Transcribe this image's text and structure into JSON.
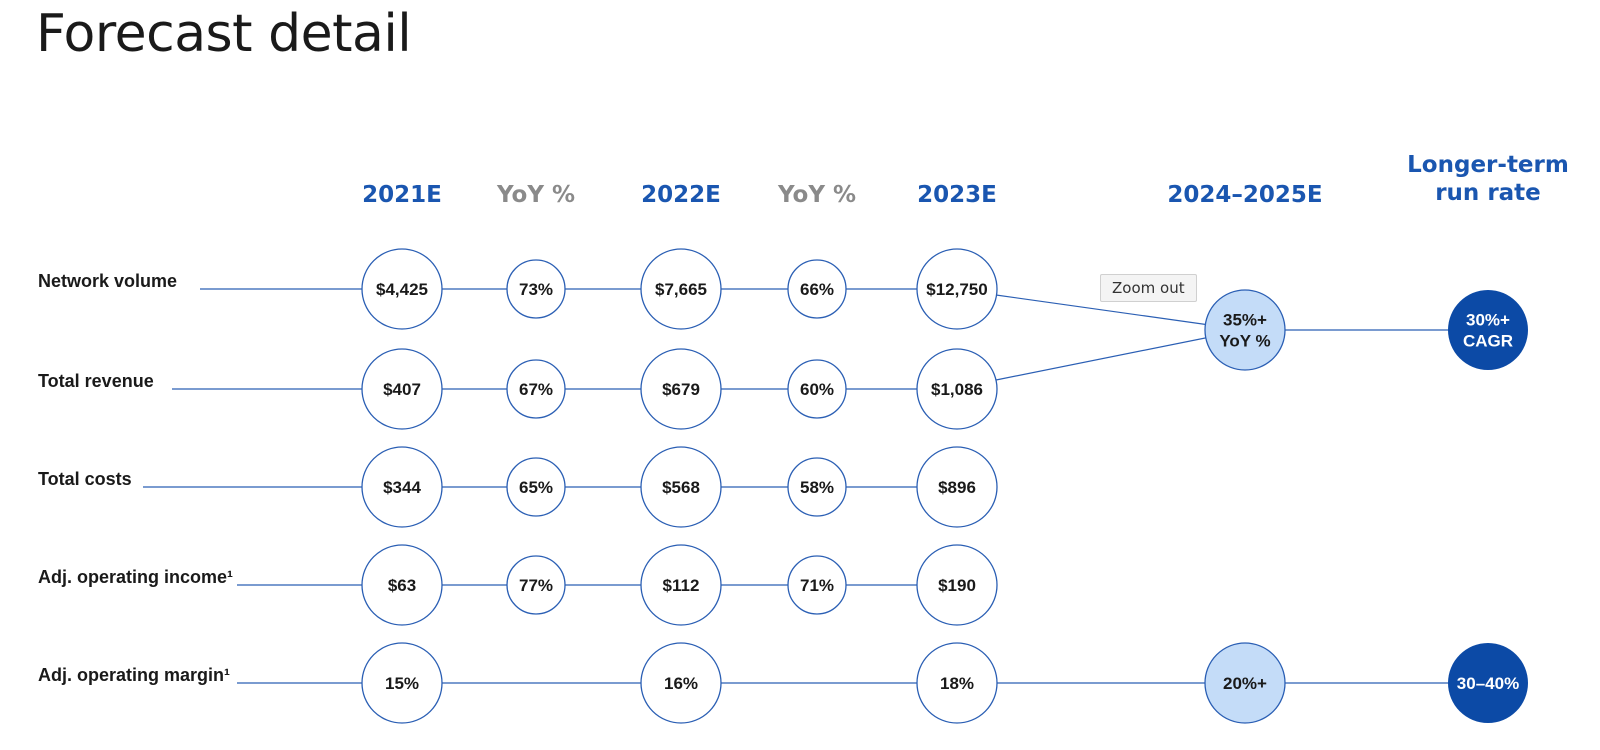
{
  "page_title": "Forecast detail",
  "columns": [
    {
      "label": "2021E",
      "kind": "year"
    },
    {
      "label": "YoY %",
      "kind": "yoy"
    },
    {
      "label": "2022E",
      "kind": "year"
    },
    {
      "label": "YoY %",
      "kind": "yoy"
    },
    {
      "label": "2023E",
      "kind": "year"
    },
    {
      "label": "2024–2025E",
      "kind": "year"
    },
    {
      "label": "Longer-term\nrun rate",
      "kind": "year"
    }
  ],
  "rows": [
    {
      "label": "Network volume",
      "values": [
        "$4,425",
        "73%",
        "$7,665",
        "66%",
        "$12,750"
      ]
    },
    {
      "label": "Total revenue",
      "values": [
        "$407",
        "67%",
        "$679",
        "60%",
        "$1,086"
      ]
    },
    {
      "label": "Total costs",
      "values": [
        "$344",
        "65%",
        "$568",
        "58%",
        "$896"
      ]
    },
    {
      "label": "Adj. operating income¹",
      "values": [
        "$63",
        "77%",
        "$112",
        "71%",
        "$190"
      ]
    },
    {
      "label": "Adj. operating margin¹",
      "values": [
        "15%",
        "",
        "16%",
        "",
        "18%"
      ]
    }
  ],
  "targets": {
    "growth_2024_2025": "35%+\nYoY %",
    "growth_long_term": "30%+\nCAGR",
    "margin_2024_2025": "20%+",
    "margin_long_term": "30–40%"
  },
  "zoom_out_label": "Zoom out",
  "colors": {
    "accent_blue": "#1a56b0",
    "yoy_gray": "#8a8a8a",
    "light_node_fill": "#c4dcf8",
    "dark_node_fill": "#0c4aa6",
    "line_blue": "#2b5fb4"
  }
}
